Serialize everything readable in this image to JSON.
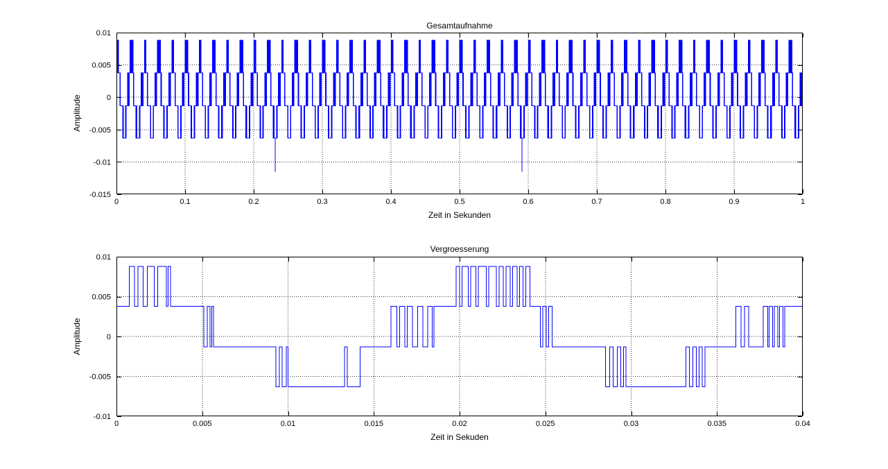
{
  "figure": {
    "background": "#ffffff",
    "axes_color": "#000000",
    "grid_color": "#333333",
    "grid_style": "dotted",
    "line_color": "#0000ff"
  },
  "chart_data": [
    {
      "type": "line",
      "subtype": "step-waveform",
      "title": "Gesamtaufnahme",
      "xlabel": "Zeit in Sekunden",
      "ylabel": "Amplitude",
      "xlim": [
        0,
        1
      ],
      "ylim": [
        -0.015,
        0.01
      ],
      "xtick_vals": [
        0,
        0.1,
        0.2,
        0.3,
        0.4,
        0.5,
        0.6,
        0.7,
        0.8,
        0.9,
        1
      ],
      "xtick_labels": [
        "0",
        "0.1",
        "0.2",
        "0.3",
        "0.4",
        "0.5",
        "0.6",
        "0.7",
        "0.8",
        "0.9",
        "1"
      ],
      "ytick_vals": [
        0.01,
        0.005,
        0,
        -0.005,
        -0.01,
        -0.015
      ],
      "ytick_labels": [
        "0.01",
        "0.005",
        "0",
        "-0.005",
        "-0.01",
        "-0.015"
      ],
      "grid": true,
      "legend": null,
      "line_color": "#0000ff",
      "signal": {
        "description": "2-bit quantized recording; tiles the 40 ms period shown in the zoom plot 25 times over 1 s",
        "quant_levels": [
          -0.0063,
          -0.0013,
          0.0038,
          0.0088
        ],
        "period_ms": 40,
        "repetitions": 25,
        "period_steps_source": "chart_data[1].signal.steps_ms",
        "spikes": [
          {
            "t_s": 0.2313,
            "value": -0.0115
          },
          {
            "t_s": 0.5909,
            "value": -0.0115
          }
        ]
      }
    },
    {
      "type": "line",
      "subtype": "step-waveform",
      "title": "Vergroesserung",
      "xlabel": "Zeit in Sekuden",
      "ylabel": "Amplitude",
      "xlim": [
        0,
        0.04
      ],
      "ylim": [
        -0.01,
        0.01
      ],
      "xtick_vals": [
        0,
        0.005,
        0.01,
        0.015,
        0.02,
        0.025,
        0.03,
        0.035,
        0.04
      ],
      "xtick_labels": [
        "0",
        "0.005",
        "0.01",
        "0.015",
        "0.02",
        "0.025",
        "0.03",
        "0.035",
        "0.04"
      ],
      "ytick_vals": [
        0.01,
        0.005,
        0,
        -0.005,
        -0.01
      ],
      "ytick_labels": [
        "0.01",
        "0.005",
        "0",
        "-0.005",
        "-0.01"
      ],
      "grid": true,
      "legend": null,
      "line_color": "#0000ff",
      "signal": {
        "description": "First 40 ms of the recording; step waveform switching between 4 quantization levels (index into quant_levels), steps_ms = [time_ms, level_index]",
        "quant_levels": [
          -0.0063,
          -0.0013,
          0.0038,
          0.0088
        ],
        "duration_ms": 40,
        "steps_ms": [
          [
            0,
            2
          ],
          [
            0.75,
            3
          ],
          [
            1.05,
            2
          ],
          [
            1.25,
            3
          ],
          [
            1.55,
            2
          ],
          [
            1.8,
            3
          ],
          [
            2.2,
            2
          ],
          [
            2.4,
            3
          ],
          [
            2.9,
            2
          ],
          [
            3.0,
            3
          ],
          [
            3.15,
            2
          ],
          [
            5.1,
            1
          ],
          [
            5.3,
            2
          ],
          [
            5.45,
            1
          ],
          [
            5.55,
            2
          ],
          [
            5.65,
            1
          ],
          [
            9.3,
            0
          ],
          [
            9.5,
            1
          ],
          [
            9.65,
            0
          ],
          [
            9.9,
            1
          ],
          [
            10.0,
            0
          ],
          [
            13.3,
            1
          ],
          [
            13.45,
            0
          ],
          [
            14.2,
            1
          ],
          [
            16.0,
            2
          ],
          [
            16.35,
            1
          ],
          [
            16.5,
            2
          ],
          [
            16.8,
            1
          ],
          [
            16.95,
            2
          ],
          [
            17.25,
            1
          ],
          [
            17.55,
            2
          ],
          [
            17.85,
            1
          ],
          [
            18.15,
            2
          ],
          [
            18.4,
            1
          ],
          [
            18.5,
            2
          ],
          [
            19.8,
            3
          ],
          [
            20.0,
            2
          ],
          [
            20.15,
            3
          ],
          [
            20.5,
            2
          ],
          [
            20.65,
            3
          ],
          [
            20.95,
            2
          ],
          [
            21.1,
            3
          ],
          [
            21.55,
            2
          ],
          [
            21.7,
            3
          ],
          [
            22.15,
            2
          ],
          [
            22.3,
            3
          ],
          [
            22.55,
            2
          ],
          [
            22.7,
            3
          ],
          [
            22.95,
            2
          ],
          [
            23.1,
            3
          ],
          [
            23.35,
            2
          ],
          [
            23.5,
            3
          ],
          [
            23.7,
            2
          ],
          [
            23.85,
            3
          ],
          [
            24.1,
            2
          ],
          [
            24.7,
            1
          ],
          [
            24.85,
            2
          ],
          [
            25.05,
            1
          ],
          [
            25.2,
            2
          ],
          [
            25.4,
            1
          ],
          [
            28.5,
            0
          ],
          [
            28.75,
            1
          ],
          [
            28.95,
            0
          ],
          [
            29.2,
            1
          ],
          [
            29.4,
            0
          ],
          [
            29.55,
            1
          ],
          [
            29.7,
            0
          ],
          [
            33.2,
            1
          ],
          [
            33.4,
            0
          ],
          [
            33.6,
            1
          ],
          [
            33.8,
            0
          ],
          [
            33.95,
            1
          ],
          [
            34.15,
            0
          ],
          [
            34.3,
            1
          ],
          [
            36.1,
            2
          ],
          [
            36.4,
            1
          ],
          [
            36.6,
            2
          ],
          [
            36.85,
            1
          ],
          [
            37.7,
            2
          ],
          [
            37.95,
            1
          ],
          [
            38.05,
            2
          ],
          [
            38.25,
            1
          ],
          [
            38.35,
            2
          ],
          [
            38.55,
            1
          ],
          [
            38.65,
            2
          ],
          [
            38.85,
            1
          ],
          [
            38.95,
            2
          ]
        ]
      }
    }
  ]
}
